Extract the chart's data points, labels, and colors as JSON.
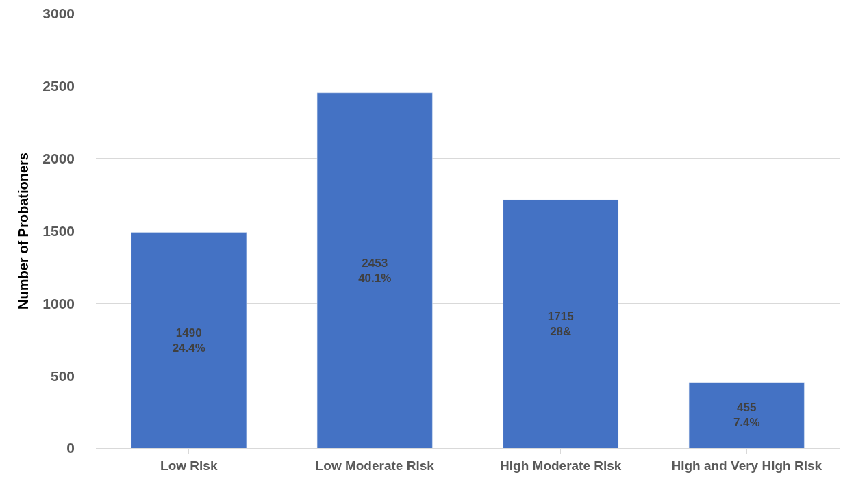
{
  "chart_data": {
    "type": "bar",
    "ylabel": "Number of Probationers",
    "categories": [
      "Low Risk",
      "Low Moderate Risk",
      "High Moderate Risk",
      "High and Very High Risk"
    ],
    "values": [
      1490,
      2453,
      1715,
      455
    ],
    "color": "#4472c4",
    "value_labels": [
      "1490\n24.4%",
      "2453\n40.1%",
      "1715\n28&",
      "455\n7.4%"
    ],
    "ylim": [
      0,
      3000
    ],
    "yticks": [
      0,
      500,
      1000,
      1500,
      2000,
      2500,
      3000
    ],
    "grid": "y"
  }
}
